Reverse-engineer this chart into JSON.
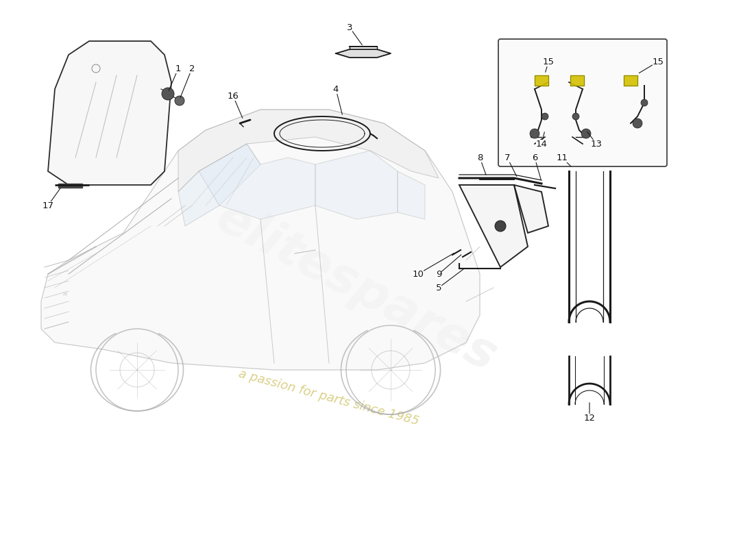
{
  "bg": "#ffffff",
  "lc": "#1a1a1a",
  "car_lc": "#aaaaaa",
  "wm1": "elitespares",
  "wm2": "a passion for parts since 1985",
  "wm1_color": "#cccccc",
  "wm2_color": "#ccc060",
  "yellow": "#d4c000",
  "box_edge": "#333333",
  "label_fs": 9.5,
  "label_color": "#111111"
}
